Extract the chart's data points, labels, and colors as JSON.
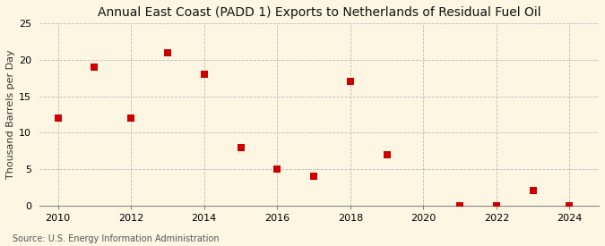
{
  "title": "Annual East Coast (PADD 1) Exports to Netherlands of Residual Fuel Oil",
  "ylabel": "Thousand Barrels per Day",
  "source": "Source: U.S. Energy Information Administration",
  "background_color": "#fdf6e3",
  "marker_color": "#cc0000",
  "x_data": [
    2010,
    2011,
    2012,
    2013,
    2014,
    2015,
    2016,
    2017,
    2018,
    2019,
    2021,
    2022,
    2023,
    2024
  ],
  "y_data": [
    12,
    19,
    12,
    21,
    18,
    8,
    5,
    4,
    17,
    7,
    0,
    0,
    2,
    0
  ],
  "xlim": [
    2009.5,
    2024.8
  ],
  "ylim": [
    0,
    25
  ],
  "yticks": [
    0,
    5,
    10,
    15,
    20,
    25
  ],
  "xticks": [
    2010,
    2012,
    2014,
    2016,
    2018,
    2020,
    2022,
    2024
  ],
  "title_fontsize": 10,
  "label_fontsize": 8,
  "tick_fontsize": 8,
  "source_fontsize": 7,
  "marker_size": 28,
  "grid_color": "#bbbbbb",
  "grid_linestyle": "--"
}
